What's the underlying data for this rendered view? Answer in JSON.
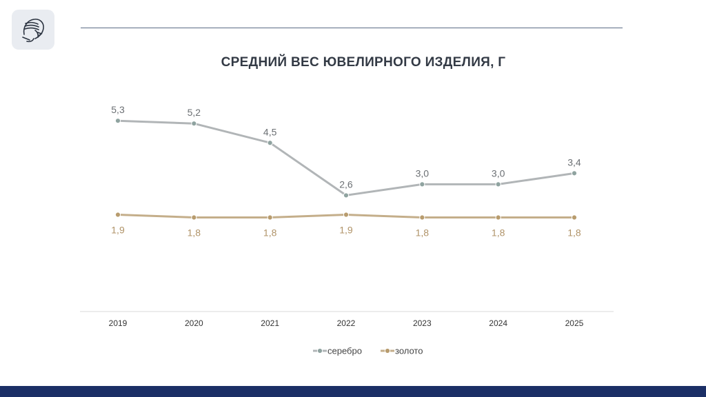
{
  "chart_data": {
    "type": "line",
    "title": "СРЕДНИЙ ВЕС ЮВЕЛИРНОГО ИЗДЕЛИЯ, Г",
    "categories": [
      "2019",
      "2020",
      "2021",
      "2022",
      "2023",
      "2024",
      "2025"
    ],
    "series": [
      {
        "name": "серебро",
        "values": [
          5.3,
          5.2,
          4.5,
          2.6,
          3.0,
          3.0,
          3.4
        ],
        "labels": [
          "5,3",
          "5,2",
          "4,5",
          "2,6",
          "3,0",
          "3,0",
          "3,4"
        ],
        "color": "#b1b5b7",
        "marker_color": "#8fa3a0",
        "label_color": "#6b6f73",
        "label_position": "above"
      },
      {
        "name": "золото",
        "values": [
          1.9,
          1.8,
          1.8,
          1.9,
          1.8,
          1.8,
          1.8
        ],
        "labels": [
          "1,9",
          "1,8",
          "1,8",
          "1,9",
          "1,8",
          "1,8",
          "1,8"
        ],
        "color": "#c4ae8a",
        "marker_color": "#b89c6e",
        "label_color": "#b09368",
        "label_position": "below"
      }
    ],
    "ylim": [
      0,
      6
    ],
    "grid": false,
    "legend": "bottom-center"
  },
  "colors": {
    "footer": "#1b2f66",
    "rule": "#5a6b84",
    "logo_bg": "#e9ecf1"
  },
  "logo_icon": "athena-head-icon"
}
